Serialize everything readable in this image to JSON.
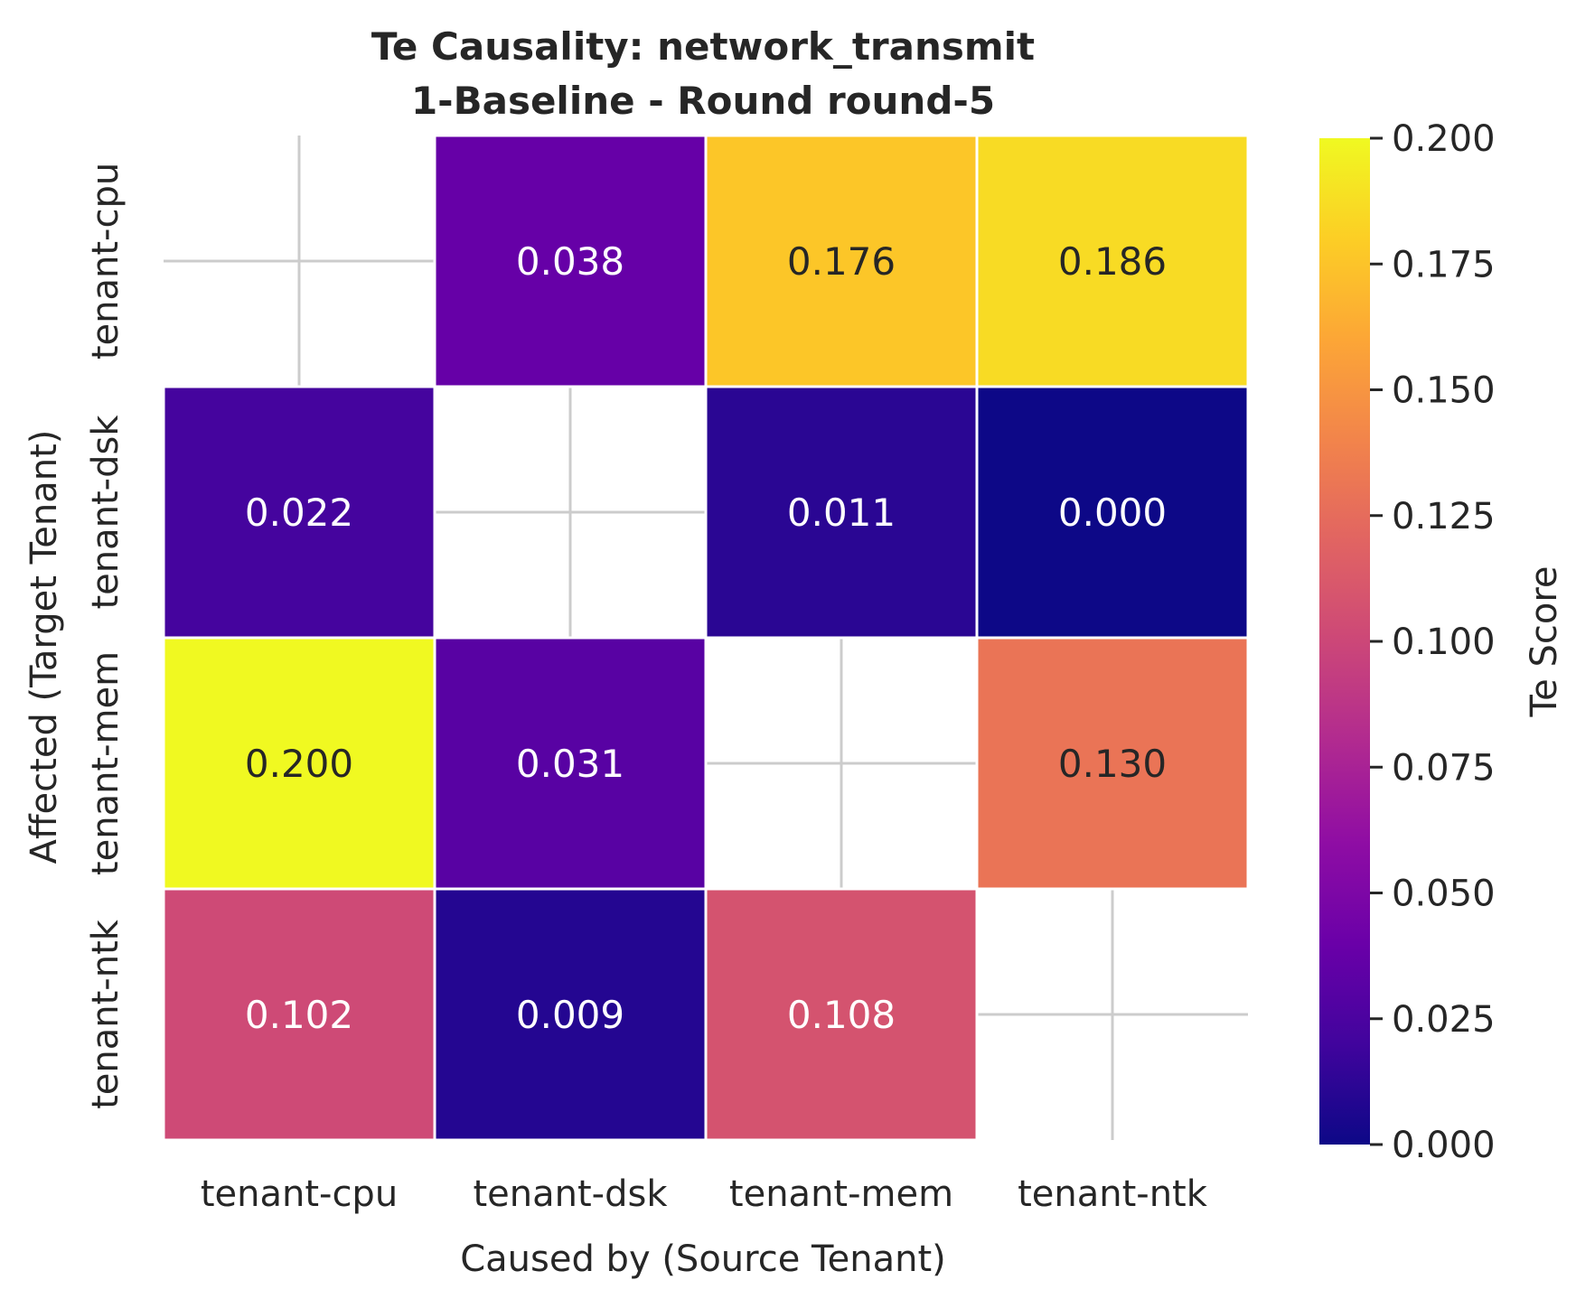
{
  "chart_data": {
    "type": "heatmap",
    "title_line1": "Te Causality: network_transmit",
    "title_line2": "1-Baseline - Round round-5",
    "xlabel": "Caused by (Source Tenant)",
    "ylabel": "Affected (Target Tenant)",
    "x_categories": [
      "tenant-cpu",
      "tenant-dsk",
      "tenant-mem",
      "tenant-ntk"
    ],
    "y_categories": [
      "tenant-cpu",
      "tenant-dsk",
      "tenant-mem",
      "tenant-ntk"
    ],
    "values": [
      [
        null,
        0.038,
        0.176,
        0.186
      ],
      [
        0.022,
        null,
        0.011,
        0.0
      ],
      [
        0.2,
        0.031,
        null,
        0.13
      ],
      [
        0.102,
        0.009,
        0.108,
        null
      ]
    ],
    "labels": [
      [
        "",
        "0.038",
        "0.176",
        "0.186"
      ],
      [
        "0.022",
        "",
        "0.011",
        "0.000"
      ],
      [
        "0.200",
        "0.031",
        "",
        "0.130"
      ],
      [
        "0.102",
        "0.009",
        "0.108",
        ""
      ]
    ],
    "colorbar": {
      "label": "Te Score",
      "range": [
        0.0,
        0.2
      ],
      "colormap": "plasma",
      "ticks": [
        0.0,
        0.025,
        0.05,
        0.075,
        0.1,
        0.125,
        0.15,
        0.175,
        0.2
      ],
      "tick_labels": [
        "0.000",
        "0.025",
        "0.050",
        "0.075",
        "0.100",
        "0.125",
        "0.150",
        "0.175",
        "0.200"
      ]
    },
    "grid": true
  },
  "colors": {
    "text": "#262626",
    "grid": "#cccccc",
    "cell_border": "#ffffff",
    "label_light": "#ffffff",
    "label_dark": "#262626"
  }
}
